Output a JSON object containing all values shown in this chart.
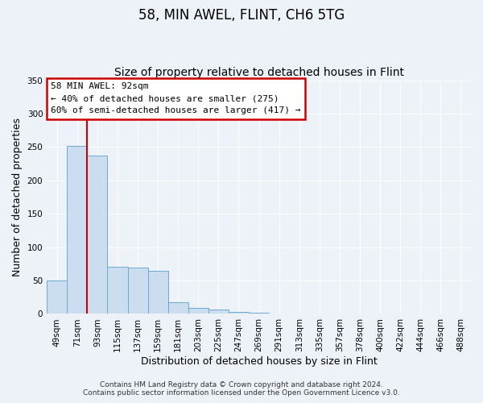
{
  "title": "58, MIN AWEL, FLINT, CH6 5TG",
  "subtitle": "Size of property relative to detached houses in Flint",
  "xlabel": "Distribution of detached houses by size in Flint",
  "ylabel": "Number of detached properties",
  "bar_labels": [
    "49sqm",
    "71sqm",
    "93sqm",
    "115sqm",
    "137sqm",
    "159sqm",
    "181sqm",
    "203sqm",
    "225sqm",
    "247sqm",
    "269sqm",
    "291sqm",
    "313sqm",
    "335sqm",
    "357sqm",
    "378sqm",
    "400sqm",
    "422sqm",
    "444sqm",
    "466sqm",
    "488sqm"
  ],
  "bar_values": [
    50,
    252,
    237,
    70,
    69,
    65,
    17,
    9,
    6,
    3,
    2,
    0,
    0,
    0,
    0,
    0,
    0,
    0,
    0,
    0,
    0
  ],
  "bar_color": "#ccddf0",
  "bar_edgecolor": "#6aaad4",
  "vline_color": "#cc0000",
  "ylim": [
    0,
    350
  ],
  "yticks": [
    0,
    50,
    100,
    150,
    200,
    250,
    300,
    350
  ],
  "annotation_title": "58 MIN AWEL: 92sqm",
  "annotation_line1": "← 40% of detached houses are smaller (275)",
  "annotation_line2": "60% of semi-detached houses are larger (417) →",
  "annotation_box_color": "#cc0000",
  "footer_line1": "Contains HM Land Registry data © Crown copyright and database right 2024.",
  "footer_line2": "Contains public sector information licensed under the Open Government Licence v3.0.",
  "bg_color": "#edf2f9",
  "plot_bg_color": "#edf2f9",
  "grid_color": "#ffffff",
  "title_fontsize": 12,
  "subtitle_fontsize": 10,
  "axis_label_fontsize": 9,
  "tick_fontsize": 7.5,
  "footer_fontsize": 6.5
}
